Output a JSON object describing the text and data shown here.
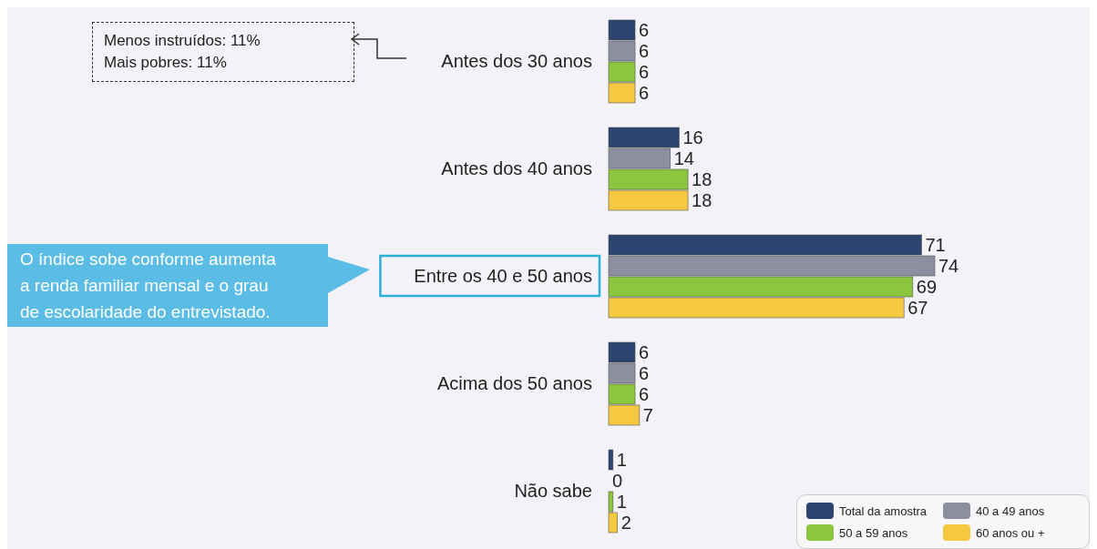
{
  "chart_data": {
    "type": "bar",
    "orientation": "horizontal",
    "categories": [
      "Antes dos 30 anos",
      "Antes dos 40 anos",
      "Entre os 40 e 50 anos",
      "Acima dos 50 anos",
      "Não sabe"
    ],
    "series": [
      {
        "name": "Total da amostra",
        "color": "#2c4470",
        "values": [
          6,
          16,
          71,
          6,
          1
        ]
      },
      {
        "name": "40 a 49 anos",
        "color": "#8c8fa0",
        "values": [
          6,
          14,
          74,
          6,
          0
        ]
      },
      {
        "name": "50 a 59 anos",
        "color": "#8cc63f",
        "values": [
          6,
          18,
          69,
          6,
          1
        ]
      },
      {
        "name": "60 anos ou +",
        "color": "#f5c842",
        "values": [
          6,
          18,
          67,
          7,
          2
        ]
      }
    ],
    "data_labels": true,
    "legend": "bottom right",
    "annotations": [
      "Menos instruídos: 11%\nMais pobres: 11%",
      "O índice sobe conforme aumenta a renda familiar mensal e o grau de escolaridade do entrevistado."
    ]
  }
}
